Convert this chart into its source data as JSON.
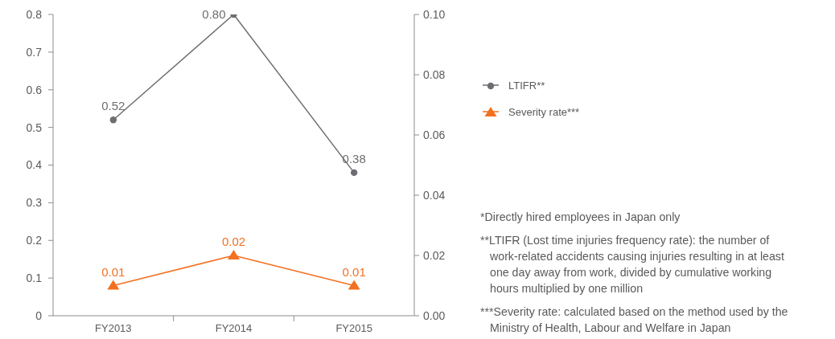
{
  "chart_data": {
    "type": "line",
    "categories": [
      "FY2013",
      "FY2014",
      "FY2015"
    ],
    "series": [
      {
        "name": "LTIFR**",
        "color": "#6d6e71",
        "values": [
          0.52,
          0.8,
          0.38
        ],
        "value_labels": [
          "0.52",
          "0.80",
          "0.38"
        ],
        "marker": "circle"
      },
      {
        "name": "Severity rate***",
        "color": "#f37021",
        "values": [
          0.01,
          0.02,
          0.01
        ],
        "value_labels": [
          "0.01",
          "0.02",
          "0.01"
        ],
        "marker": "triangle",
        "axis": "y2"
      }
    ],
    "ylim": [
      0,
      0.8
    ],
    "yticks": [
      0,
      0.1,
      0.2,
      0.3,
      0.4,
      0.5,
      0.6,
      0.7,
      0.8
    ],
    "y2lim": [
      0,
      0.1
    ],
    "y2ticks": [
      {
        "value": 0,
        "label": "0.00"
      },
      0.02,
      0.04,
      0.06,
      0.08,
      {
        "value": 0.1,
        "label": "0.10"
      }
    ],
    "legend": "right",
    "grid": false,
    "annotations": [
      "*Directly hired employees in Japan only",
      "**LTIFR (Lost time injuries frequency rate): the number of work-related accidents causing injuries resulting in at least one day away from work, divided by cumulative working hours multiplied by one million",
      "***Severity rate: calculated based on the method used by the Ministry of Health, Labour and Welfare in Japan"
    ]
  }
}
